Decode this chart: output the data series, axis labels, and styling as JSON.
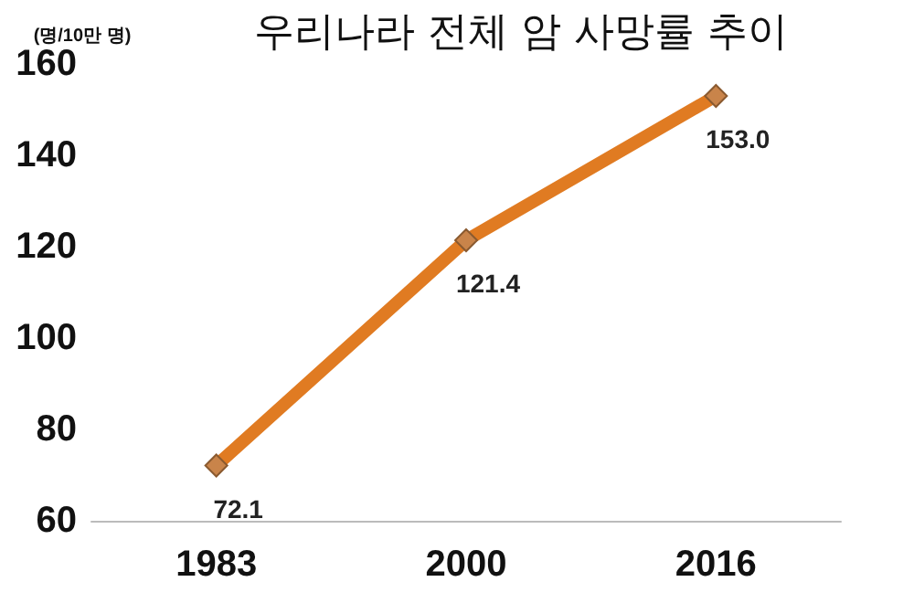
{
  "chart_data": {
    "type": "line",
    "title": "우리나라 전체 암 사망률 추이",
    "ylabel": "(명/10만 명)",
    "categories": [
      "1983",
      "2000",
      "2016"
    ],
    "series": [
      {
        "color": "#e07b22",
        "values": [
          72.1,
          121.4,
          153.0
        ],
        "value_labels": [
          "72.1",
          "121.4",
          "153.0"
        ]
      }
    ],
    "ylim": [
      60,
      160
    ],
    "yticks": [
      60,
      80,
      100,
      120,
      140,
      160
    ],
    "grid": false,
    "marker": "diamond",
    "line_style": "solid"
  }
}
